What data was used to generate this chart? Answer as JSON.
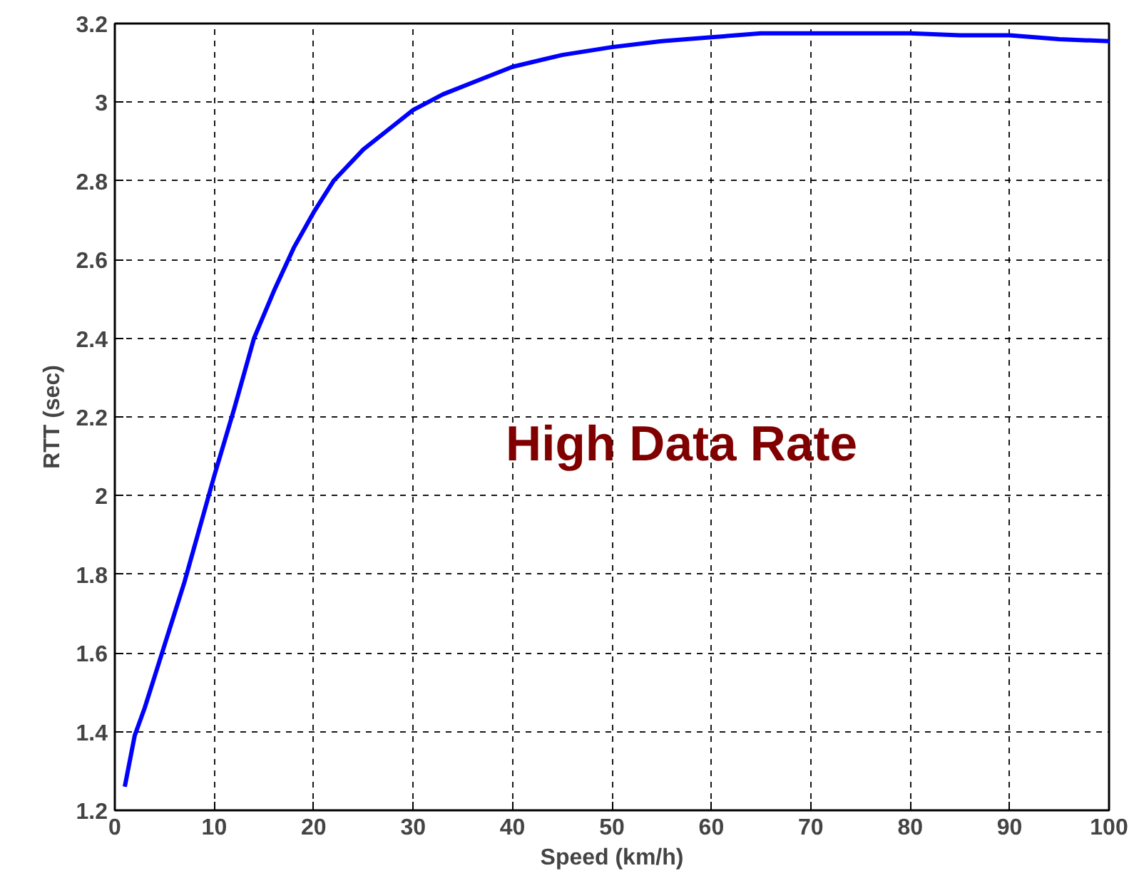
{
  "chart_data": {
    "type": "line",
    "xlabel": "Speed (km/h)",
    "ylabel": "RTT (sec)",
    "annotations": [
      "High Data Rate"
    ],
    "x": [
      1,
      2,
      3,
      4,
      5,
      6,
      7,
      8,
      9,
      10,
      12,
      14,
      16,
      18,
      20,
      22,
      25,
      28,
      30,
      33,
      36,
      40,
      45,
      50,
      55,
      60,
      65,
      70,
      75,
      80,
      85,
      90,
      95,
      100
    ],
    "series": [
      {
        "color": "#0000ff",
        "values": [
          1.26,
          1.39,
          1.46,
          1.54,
          1.62,
          1.7,
          1.78,
          1.87,
          1.96,
          2.05,
          2.22,
          2.4,
          2.52,
          2.63,
          2.72,
          2.8,
          2.88,
          2.94,
          2.98,
          3.02,
          3.05,
          3.09,
          3.12,
          3.14,
          3.155,
          3.165,
          3.175,
          3.175,
          3.175,
          3.175,
          3.17,
          3.17,
          3.16,
          3.155
        ]
      }
    ],
    "xlim": [
      0,
      100
    ],
    "ylim": [
      1.2,
      3.2
    ],
    "xticks": [
      0,
      10,
      20,
      30,
      40,
      50,
      60,
      70,
      80,
      90,
      100
    ],
    "yticks": [
      {
        "value": 1.2,
        "label": "1.2"
      },
      {
        "value": 1.4,
        "label": "1.4"
      },
      {
        "value": 1.6,
        "label": "1.6"
      },
      {
        "value": 1.8,
        "label": "1.8"
      },
      {
        "value": 2,
        "label": "2"
      },
      {
        "value": 2.2,
        "label": "2.2"
      },
      {
        "value": 2.4,
        "label": "2.4"
      },
      {
        "value": 2.6,
        "label": "2.6"
      },
      {
        "value": 2.8,
        "label": "2.8"
      },
      {
        "value": 3,
        "label": "3"
      },
      {
        "value": 3.2,
        "label": "3.2"
      }
    ],
    "grid": true,
    "line_style": "solid",
    "marker": "none"
  }
}
